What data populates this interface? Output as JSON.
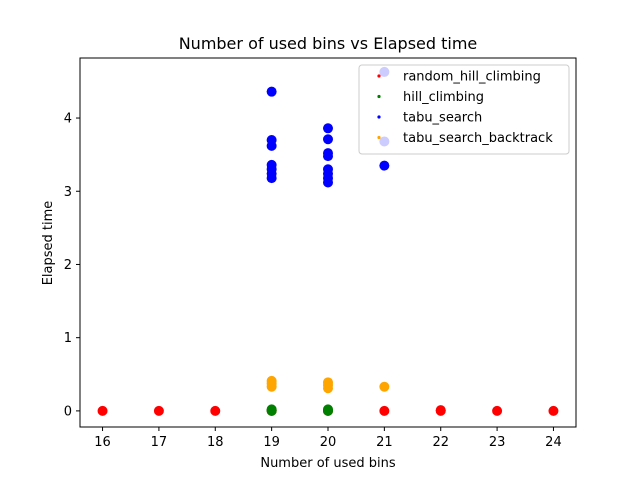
{
  "chart_data": {
    "type": "scatter",
    "title": "Number of used bins vs Elapsed time",
    "xlabel": "Number of used bins",
    "ylabel": "Elapsed time",
    "xlim": [
      15.6,
      24.4
    ],
    "ylim": [
      -0.22,
      4.82
    ],
    "xticks": [
      16,
      17,
      18,
      19,
      20,
      21,
      22,
      23,
      24
    ],
    "yticks": [
      0,
      1,
      2,
      3,
      4
    ],
    "grid": false,
    "legend_position": "top-right",
    "series": [
      {
        "name": "random_hill_climbing",
        "color": "#ff0000",
        "points": [
          [
            16,
            0.0
          ],
          [
            17,
            0.0
          ],
          [
            18,
            0.0
          ],
          [
            19,
            0.0
          ],
          [
            19,
            0.01
          ],
          [
            20,
            0.0
          ],
          [
            21,
            0.0
          ],
          [
            22,
            0.0
          ],
          [
            22,
            0.01
          ],
          [
            23,
            0.0
          ],
          [
            24,
            0.0
          ]
        ]
      },
      {
        "name": "hill_climbing",
        "color": "#008000",
        "points": [
          [
            19,
            0.0
          ],
          [
            19,
            0.01
          ],
          [
            19,
            0.02
          ],
          [
            20,
            0.0
          ],
          [
            20,
            0.01
          ],
          [
            20,
            0.02
          ]
        ]
      },
      {
        "name": "tabu_search",
        "color": "#0000ff",
        "points": [
          [
            19,
            4.36
          ],
          [
            19,
            3.7
          ],
          [
            19,
            3.62
          ],
          [
            19,
            3.36
          ],
          [
            19,
            3.3
          ],
          [
            19,
            3.24
          ],
          [
            19,
            3.18
          ],
          [
            20,
            3.86
          ],
          [
            20,
            3.71
          ],
          [
            20,
            3.52
          ],
          [
            20,
            3.48
          ],
          [
            20,
            3.3
          ],
          [
            20,
            3.24
          ],
          [
            20,
            3.18
          ],
          [
            20,
            3.12
          ],
          [
            21,
            4.63
          ],
          [
            21,
            3.68
          ],
          [
            21,
            3.35
          ]
        ]
      },
      {
        "name": "tabu_search_backtrack",
        "color": "#ffa500",
        "points": [
          [
            19,
            0.41
          ],
          [
            19,
            0.37
          ],
          [
            19,
            0.33
          ],
          [
            20,
            0.39
          ],
          [
            20,
            0.35
          ],
          [
            20,
            0.31
          ],
          [
            21,
            0.33
          ]
        ]
      }
    ]
  }
}
